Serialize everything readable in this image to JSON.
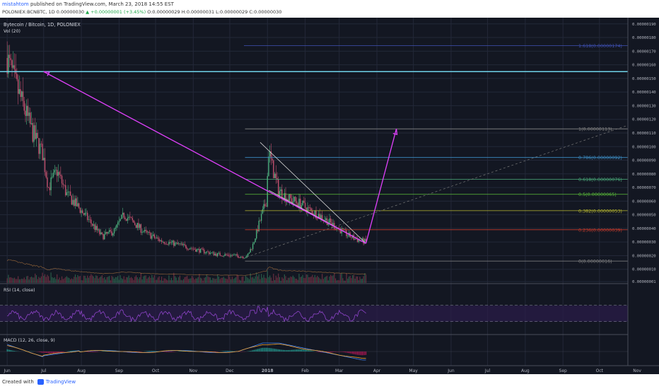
{
  "header": {
    "author": "mistahtom",
    "published_text": " published on TradingView.com, March 23, 2018 14:55 EST",
    "symbol": "POLONIEX:BCNBTC, 1D",
    "open": " 0.00000030 ",
    "change": "▲ +0.00000001 (+3.45%)",
    "ohlc": " O:0.00000029 H:0.00000031 L:0.00000029 C:0.00000030"
  },
  "footer": {
    "created_with": "Created with",
    "brand": "TradingView"
  },
  "colors": {
    "background": "#131722",
    "grid": "#232838",
    "up": "#4caf7d",
    "down": "#c2516f",
    "price_line": "#6fd3e8",
    "arrow": "#e040fb",
    "wedge": "#d7d7d7",
    "rsi": "#8e44c9",
    "macd": "#3b82f6",
    "signal": "#f0a030",
    "hist_pos": "#26a69a",
    "hist_neg": "#c2185b",
    "volume_ma": "#d28b45"
  },
  "chart_data": [
    {
      "type": "candlestick",
      "panel": "price",
      "title": "Bytecoin / Bitcoin, 1D, POLONIEX",
      "x_ticks": [
        "Jun",
        "Jul",
        "Aug",
        "Sep",
        "Oct",
        "Nov",
        "Dec",
        "2018",
        "Feb",
        "Mar",
        "Apr",
        "May",
        "Jun",
        "Jul",
        "Aug",
        "Sep",
        "Oct",
        "Nov"
      ],
      "y_ticks": [
        "0.00000190",
        "0.00000180",
        "0.00000170",
        "0.00000160",
        "0.00000150",
        "0.00000140",
        "0.00000130",
        "0.00000120",
        "0.00000110",
        "0.00000100",
        "0.00000090",
        "0.00000080",
        "0.00000070",
        "0.00000060",
        "0.00000050",
        "0.00000040",
        "0.00000030",
        "0.00000020",
        "0.00000010",
        "0.00000001"
      ],
      "ylim": [
        0,
        1.93e-06
      ],
      "price_path": [
        [
          "Jun 1",
          1.65e-06
        ],
        [
          "Jun 8",
          1.45e-06
        ],
        [
          "Jun 15",
          1.28e-06
        ],
        [
          "Jun 22",
          1.1e-06
        ],
        [
          "Jun 30",
          9.5e-07
        ],
        [
          "Jul 5",
          7e-07
        ],
        [
          "Jul 12",
          8.2e-07
        ],
        [
          "Jul 20",
          6.5e-07
        ],
        [
          "Jul 30",
          5.5e-07
        ],
        [
          "Aug 8",
          4.5e-07
        ],
        [
          "Aug 18",
          3.4e-07
        ],
        [
          "Aug 28",
          3.8e-07
        ],
        [
          "Sep 5",
          5e-07
        ],
        [
          "Sep 12",
          4.5e-07
        ],
        [
          "Sep 22",
          3.7e-07
        ],
        [
          "Oct 5",
          3.1e-07
        ],
        [
          "Oct 20",
          2.8e-07
        ],
        [
          "Nov 5",
          2.4e-07
        ],
        [
          "Nov 20",
          2.1e-07
        ],
        [
          "Dec 5",
          2e-07
        ],
        [
          "Dec 15",
          1.9e-07
        ],
        [
          "Dec 20",
          2.8e-07
        ],
        [
          "Dec 25",
          4.3e-07
        ],
        [
          "Dec 31",
          6e-07
        ],
        [
          "Jan 2",
          9.7e-07
        ],
        [
          "Jan 5",
          8.5e-07
        ],
        [
          "Jan 10",
          6.8e-07
        ],
        [
          "Jan 18",
          6.2e-07
        ],
        [
          "Jan 28",
          5.8e-07
        ],
        [
          "Feb 5",
          5.3e-07
        ],
        [
          "Feb 12",
          5e-07
        ],
        [
          "Feb 20",
          4.5e-07
        ],
        [
          "Feb 28",
          4e-07
        ],
        [
          "Mar 8",
          3.5e-07
        ],
        [
          "Mar 15",
          3.2e-07
        ],
        [
          "Mar 23",
          3e-07
        ]
      ],
      "fib_levels": [
        {
          "label": "1.618(0.00000174)",
          "value": 1.74e-06,
          "color": "#3f51b5"
        },
        {
          "label": "1(0.00000113)",
          "value": 1.13e-06,
          "color": "#888888"
        },
        {
          "label": "0.786(0.00000092)",
          "value": 9.2e-07,
          "color": "#3d8fc7"
        },
        {
          "label": "0.618(0.00000076)",
          "value": 7.6e-07,
          "color": "#4caf7d"
        },
        {
          "label": "0.5(0.00000065)",
          "value": 6.5e-07,
          "color": "#5cbf3a"
        },
        {
          "label": "0.382(0.00000053)",
          "value": 5.3e-07,
          "color": "#b8b830"
        },
        {
          "label": "0.236(0.00000039)",
          "value": 3.9e-07,
          "color": "#c0392b"
        },
        {
          "label": "0(0.00000016)",
          "value": 1.6e-07,
          "color": "#888888"
        }
      ],
      "horizontal_line": {
        "label": "0.00000155",
        "value": 1.55e-06
      },
      "last_price_label": "0.00000030",
      "projection_targets": [
        {
          "date": "Apr 17",
          "value": 1.13e-06
        },
        {
          "date": "Jul 1",
          "value": 1.55e-06
        }
      ]
    },
    {
      "type": "bar",
      "panel": "volume",
      "title": "Vol (20)"
    },
    {
      "type": "line",
      "panel": "rsi",
      "title": "RSI (14, close)",
      "y_ticks": [
        "120.0000",
        "80.0000",
        "40.0000",
        "0.0000"
      ],
      "ylim": [
        0,
        120
      ],
      "bands": [
        30,
        70
      ]
    },
    {
      "type": "line",
      "panel": "macd",
      "title": "MACD (12, 26, close, 9)",
      "y_ticks": [
        "0.0000",
        "-0.0000"
      ]
    }
  ]
}
